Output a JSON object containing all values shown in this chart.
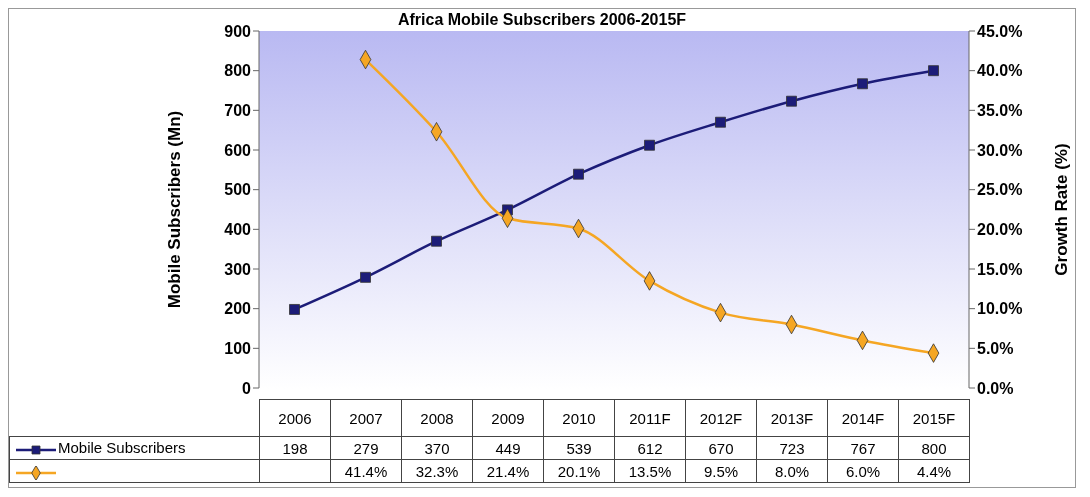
{
  "chart_data": {
    "type": "line",
    "title": "Africa Mobile Subscribers 2006-2015F",
    "ylabel": "Mobile Subscribers (Mn)",
    "y2label": "Growth Rate (%)",
    "categories": [
      "2006",
      "2007",
      "2008",
      "2009",
      "2010",
      "2011F",
      "2012F",
      "2013F",
      "2014F",
      "2015F"
    ],
    "series": [
      {
        "name": "Mobile Subscribers",
        "color": "#1c1c78",
        "marker": "square",
        "values": [
          198,
          279,
          370,
          449,
          539,
          612,
          670,
          723,
          767,
          800
        ],
        "value_labels": [
          "198",
          "279",
          "370",
          "449",
          "539",
          "612",
          "670",
          "723",
          "767",
          "800"
        ]
      },
      {
        "color": "#f5a623",
        "marker": "diamond",
        "axis": "y2",
        "values": [
          null,
          41.4,
          32.3,
          21.4,
          20.1,
          13.5,
          9.5,
          8.0,
          6.0,
          4.4
        ],
        "value_labels": [
          null,
          "41.4%",
          "32.3%",
          "21.4%",
          "20.1%",
          "13.5%",
          "9.5%",
          "8.0%",
          "6.0%",
          "4.4%"
        ]
      }
    ],
    "ylim": [
      0,
      900
    ],
    "yticks": [
      0,
      100,
      200,
      300,
      400,
      500,
      600,
      700,
      800,
      900
    ],
    "y2lim": [
      0,
      45
    ],
    "y2ticks": [
      {
        "value": 0,
        "label": "0.0%"
      },
      {
        "value": 5,
        "label": "5.0%"
      },
      {
        "value": 10,
        "label": "10.0%"
      },
      {
        "value": 15,
        "label": "15.0%"
      },
      {
        "value": 20,
        "label": "20.0%"
      },
      {
        "value": 25,
        "label": "25.0%"
      },
      {
        "value": 30,
        "label": "30.0%"
      },
      {
        "value": 35,
        "label": "35.0%"
      },
      {
        "value": 40,
        "label": "40.0%"
      },
      {
        "value": 45,
        "label": "45.0%"
      }
    ],
    "legend": "bottom",
    "line_style": "solid"
  }
}
